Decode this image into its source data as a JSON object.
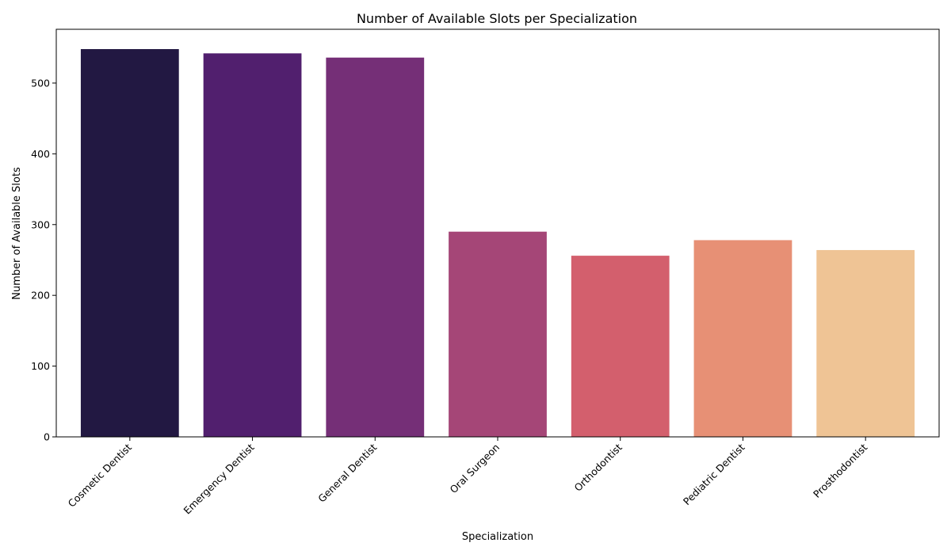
{
  "chart_data": {
    "type": "bar",
    "title": "Number of Available Slots per Specialization",
    "xlabel": "Specialization",
    "ylabel": "Number of Available Slots",
    "categories": [
      "Cosmetic Dentist",
      "Emergency Dentist",
      "General Dentist",
      "Oral Surgeon",
      "Orthodontist",
      "Pediatric Dentist",
      "Prosthodontist"
    ],
    "values": [
      548,
      542,
      536,
      290,
      256,
      278,
      264
    ],
    "colors": [
      "#221842",
      "#511f6e",
      "#752f77",
      "#a54677",
      "#d35f6d",
      "#e79075",
      "#efc495"
    ],
    "yticks": [
      0,
      100,
      200,
      300,
      400,
      500
    ],
    "ylim": [
      0,
      576
    ],
    "grid": false,
    "legend": "none"
  }
}
